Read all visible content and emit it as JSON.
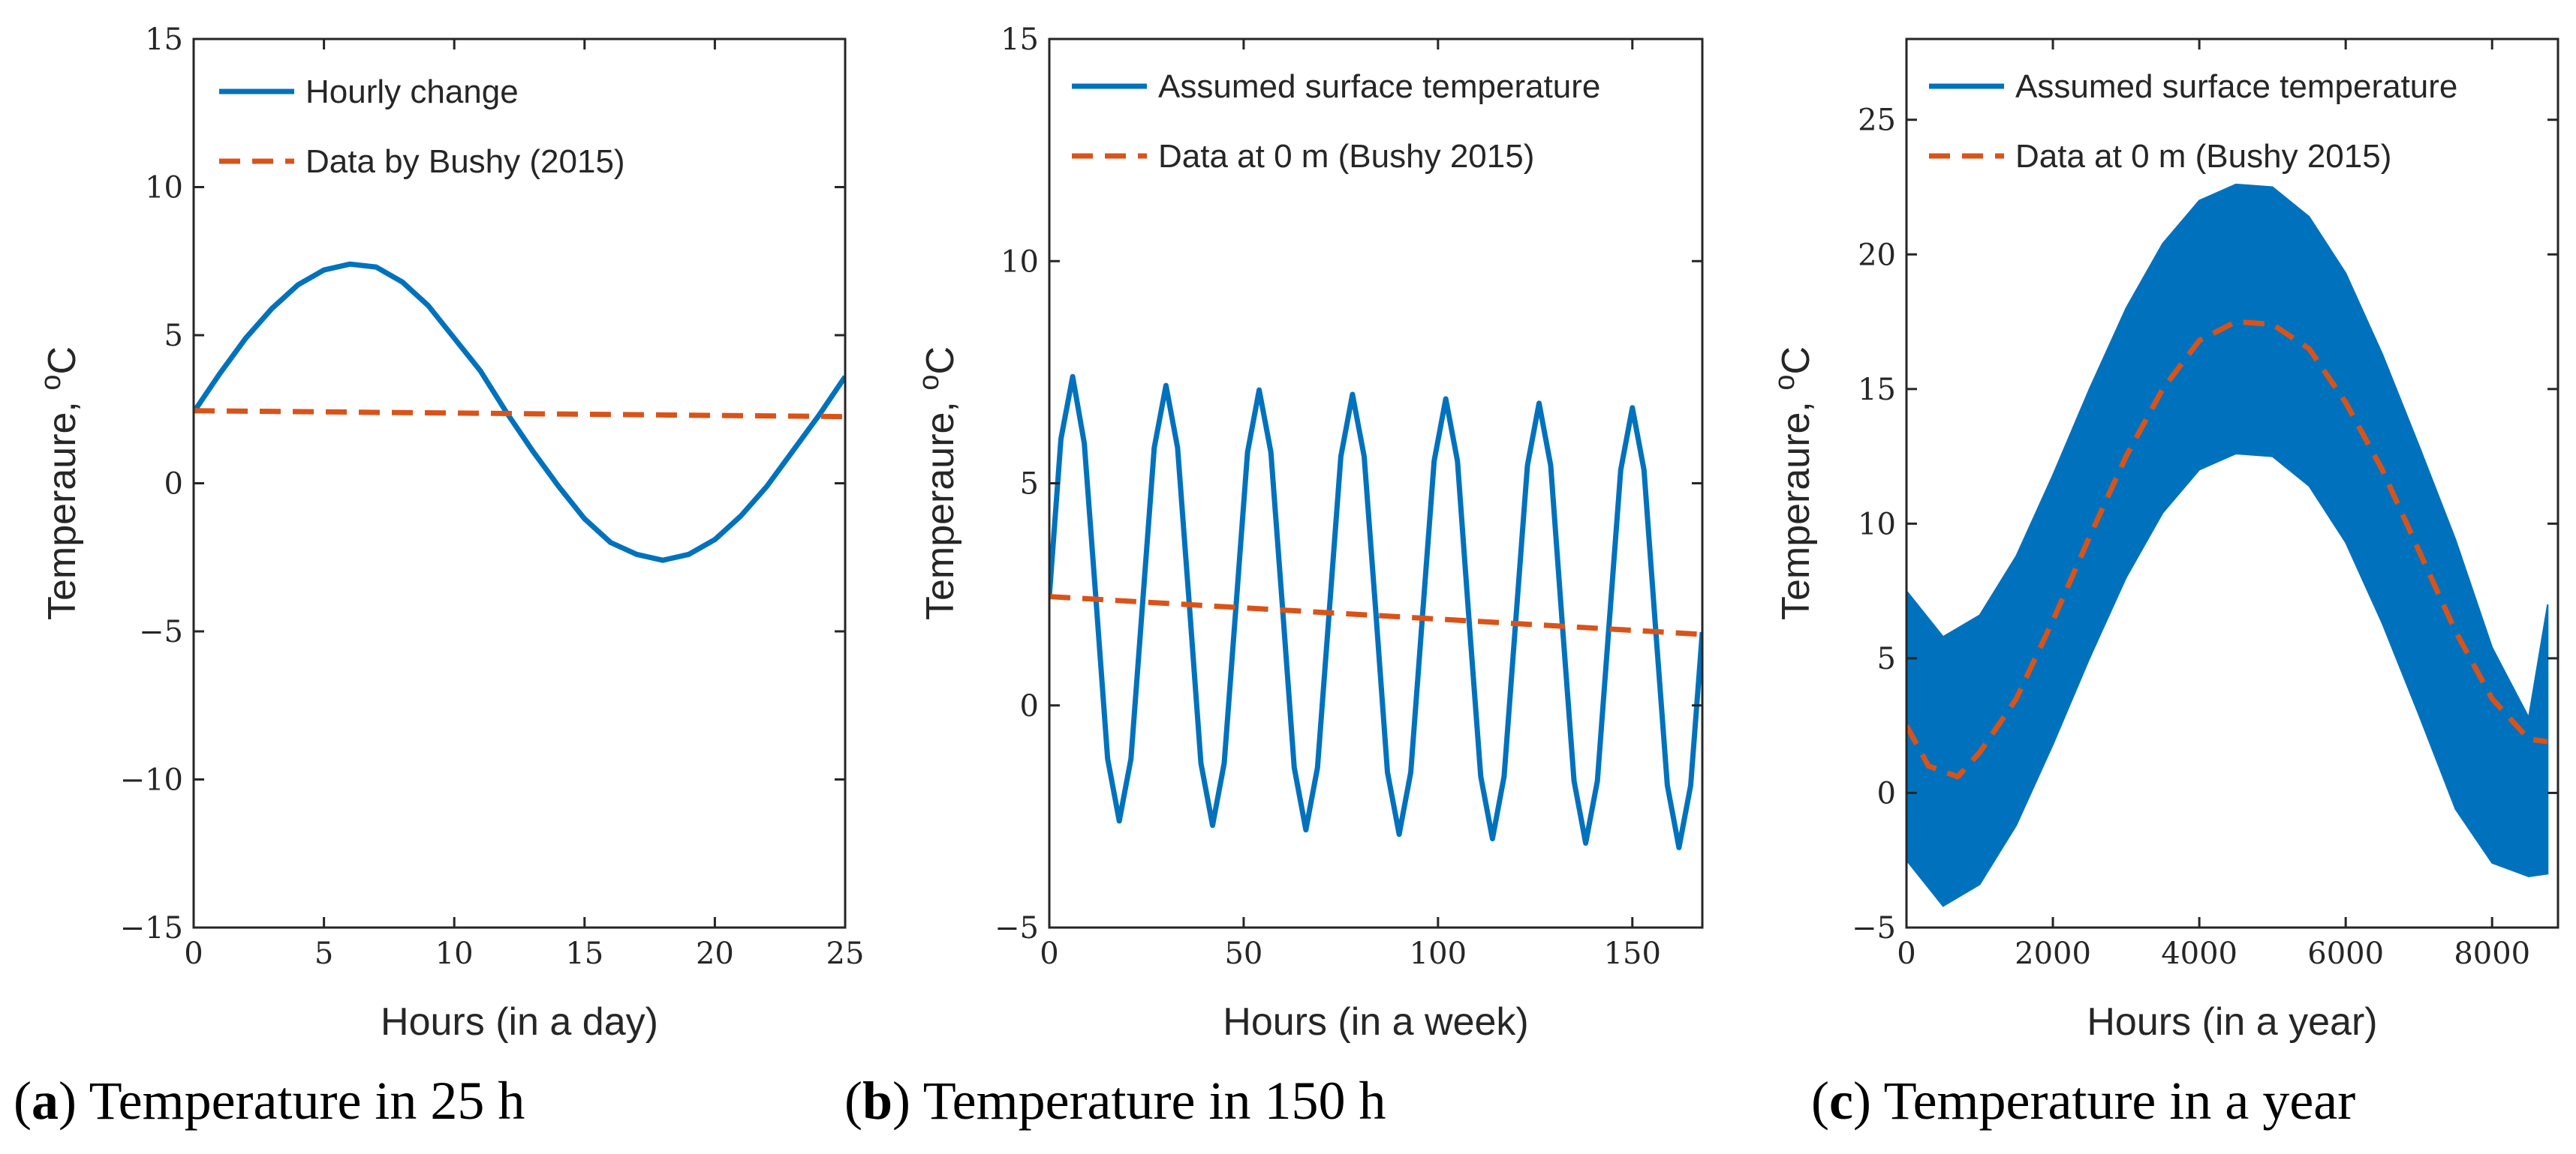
{
  "colors": {
    "series_primary": "#0072BD",
    "series_secondary": "#D95319",
    "axes": "#262626"
  },
  "chart_data": [
    {
      "type": "line",
      "panel_label": "a",
      "caption": "Temperature in 25 h",
      "xlabel": "Hours (in a day)",
      "ylabel": "Temperaure, ",
      "ylabel_superscript": "o",
      "ylabel_unit": "C",
      "xlim": [
        0,
        25
      ],
      "ylim": [
        -15,
        15
      ],
      "xticks": [
        0,
        5,
        10,
        15,
        20,
        25
      ],
      "yticks": [
        -15,
        -10,
        -5,
        0,
        5,
        10,
        15
      ],
      "grid": false,
      "legend_position": "top-left",
      "series": [
        {
          "name": "Hourly change",
          "style": "solid",
          "color": "#0072BD",
          "x": [
            0,
            1,
            2,
            3,
            4,
            5,
            6,
            7,
            8,
            9,
            10,
            11,
            12,
            13,
            14,
            15,
            16,
            17,
            18,
            19,
            20,
            21,
            22,
            23,
            24,
            25
          ],
          "y": [
            2.4,
            3.7,
            4.9,
            5.9,
            6.7,
            7.2,
            7.4,
            7.3,
            6.8,
            6.0,
            4.9,
            3.8,
            2.4,
            1.1,
            -0.1,
            -1.2,
            -2.0,
            -2.4,
            -2.6,
            -2.4,
            -1.9,
            -1.1,
            -0.1,
            1.1,
            2.3,
            3.6
          ]
        },
        {
          "name": "Data by Bushy (2015)",
          "style": "dashed",
          "color": "#D95319",
          "x": [
            0,
            25
          ],
          "y": [
            2.45,
            2.25
          ]
        }
      ]
    },
    {
      "type": "line",
      "panel_label": "b",
      "caption": "Temperature in 150 h",
      "xlabel": "Hours (in a week)",
      "ylabel": "Temperaure, ",
      "ylabel_superscript": "o",
      "ylabel_unit": "C",
      "xlim": [
        0,
        168
      ],
      "ylim": [
        -5,
        15
      ],
      "xticks": [
        0,
        50,
        100,
        150
      ],
      "yticks": [
        -5,
        0,
        5,
        10,
        15
      ],
      "grid": false,
      "legend_position": "top-right",
      "series": [
        {
          "name": "Assumed surface temperature",
          "style": "solid",
          "color": "#0072BD",
          "x": [
            0,
            3,
            6,
            9,
            12,
            15,
            18,
            21,
            24,
            27,
            30,
            33,
            36,
            39,
            42,
            45,
            48,
            51,
            54,
            57,
            60,
            63,
            66,
            69,
            72,
            75,
            78,
            81,
            84,
            87,
            90,
            93,
            96,
            99,
            102,
            105,
            108,
            111,
            114,
            117,
            120,
            123,
            126,
            129,
            132,
            135,
            138,
            141,
            144,
            147,
            150,
            153,
            156,
            159,
            162,
            165,
            168
          ],
          "y": [
            2.45,
            6.0,
            7.4,
            5.9,
            2.4,
            -1.2,
            -2.6,
            -1.2,
            2.3,
            5.8,
            7.2,
            5.8,
            2.3,
            -1.3,
            -2.7,
            -1.3,
            2.2,
            5.7,
            7.1,
            5.7,
            2.2,
            -1.4,
            -2.8,
            -1.4,
            2.1,
            5.6,
            7.0,
            5.6,
            2.1,
            -1.5,
            -2.9,
            -1.5,
            2.0,
            5.5,
            6.9,
            5.5,
            1.9,
            -1.6,
            -3.0,
            -1.6,
            1.9,
            5.4,
            6.8,
            5.4,
            1.8,
            -1.7,
            -3.1,
            -1.7,
            1.8,
            5.3,
            6.7,
            5.3,
            1.7,
            -1.8,
            -3.2,
            -1.8,
            1.65
          ]
        },
        {
          "name": "Data at 0 m (Bushy 2015)",
          "style": "dashed",
          "color": "#D95319",
          "x": [
            0,
            168
          ],
          "y": [
            2.45,
            1.6
          ]
        }
      ]
    },
    {
      "type": "area",
      "panel_label": "c",
      "caption": "Temperature in a year",
      "xlabel": "Hours (in a year)",
      "ylabel": "Temperaure, ",
      "ylabel_superscript": "o",
      "ylabel_unit": "C",
      "xlim": [
        0,
        8900
      ],
      "ylim": [
        -5,
        28
      ],
      "xticks": [
        0,
        2000,
        4000,
        6000,
        8000
      ],
      "yticks": [
        -5,
        0,
        5,
        10,
        15,
        20,
        25
      ],
      "grid": false,
      "legend_position": "top-right",
      "series": [
        {
          "name": "Assumed surface temperature",
          "style": "band",
          "color": "#0072BD",
          "x": [
            0,
            500,
            1000,
            1500,
            2000,
            2500,
            3000,
            3500,
            4000,
            4500,
            5000,
            5500,
            6000,
            6500,
            7000,
            7500,
            8000,
            8500,
            8760
          ],
          "y_upper": [
            7.5,
            5.8,
            6.6,
            8.8,
            11.8,
            15.0,
            18.0,
            20.4,
            22.0,
            22.6,
            22.5,
            21.4,
            19.3,
            16.3,
            12.9,
            9.4,
            5.4,
            2.8,
            7.0
          ],
          "y_lower": [
            -2.5,
            -4.2,
            -3.4,
            -1.2,
            1.8,
            5.0,
            8.0,
            10.4,
            12.0,
            12.6,
            12.5,
            11.4,
            9.3,
            6.3,
            2.9,
            -0.6,
            -2.6,
            -3.1,
            -3.0
          ]
        },
        {
          "name": "Data at 0 m (Bushy 2015)",
          "style": "dashed",
          "color": "#D95319",
          "x": [
            0,
            300,
            700,
            1000,
            1500,
            2000,
            2500,
            3000,
            3500,
            4000,
            4500,
            5000,
            5500,
            6000,
            6500,
            7000,
            7500,
            8000,
            8500,
            8760
          ],
          "y": [
            2.5,
            1.0,
            0.6,
            1.5,
            3.5,
            6.4,
            9.5,
            12.5,
            15.0,
            16.8,
            17.5,
            17.4,
            16.5,
            14.5,
            12.0,
            9.0,
            6.0,
            3.5,
            2.0,
            1.9
          ]
        }
      ]
    }
  ]
}
